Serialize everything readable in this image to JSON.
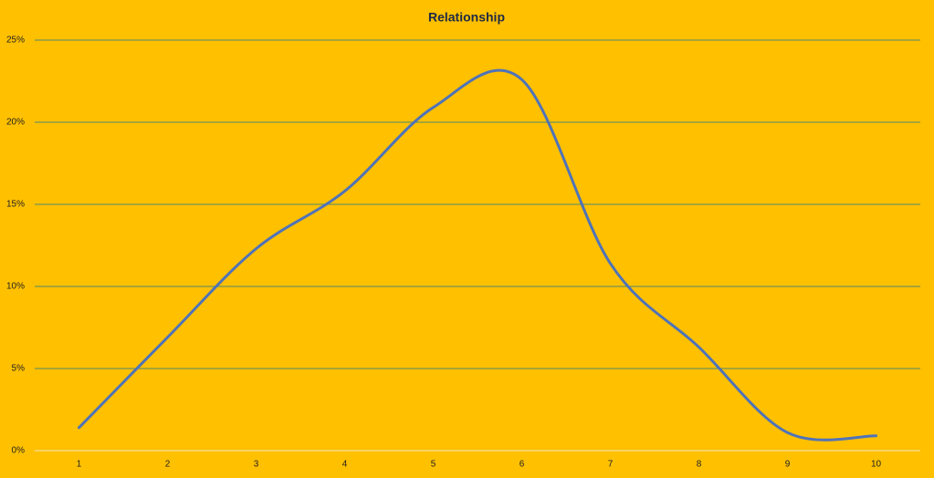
{
  "chart_data": {
    "type": "line",
    "title": "Relationship",
    "categories": [
      "1",
      "2",
      "3",
      "4",
      "5",
      "6",
      "7",
      "8",
      "9",
      "10"
    ],
    "series": [
      {
        "color": "#4f73b8",
        "values": [
          1.4,
          6.9,
          12.3,
          15.8,
          20.9,
          22.6,
          11.4,
          6.3,
          1.1,
          0.9
        ]
      }
    ],
    "ylim": [
      0,
      25
    ],
    "yticks": [
      {
        "value": 0,
        "label": "0%"
      },
      {
        "value": 5,
        "label": "5%"
      },
      {
        "value": 10,
        "label": "10%"
      },
      {
        "value": 15,
        "label": "15%"
      },
      {
        "value": 20,
        "label": "20%"
      },
      {
        "value": 25,
        "label": "25%"
      }
    ],
    "grid": true,
    "smooth": true
  }
}
